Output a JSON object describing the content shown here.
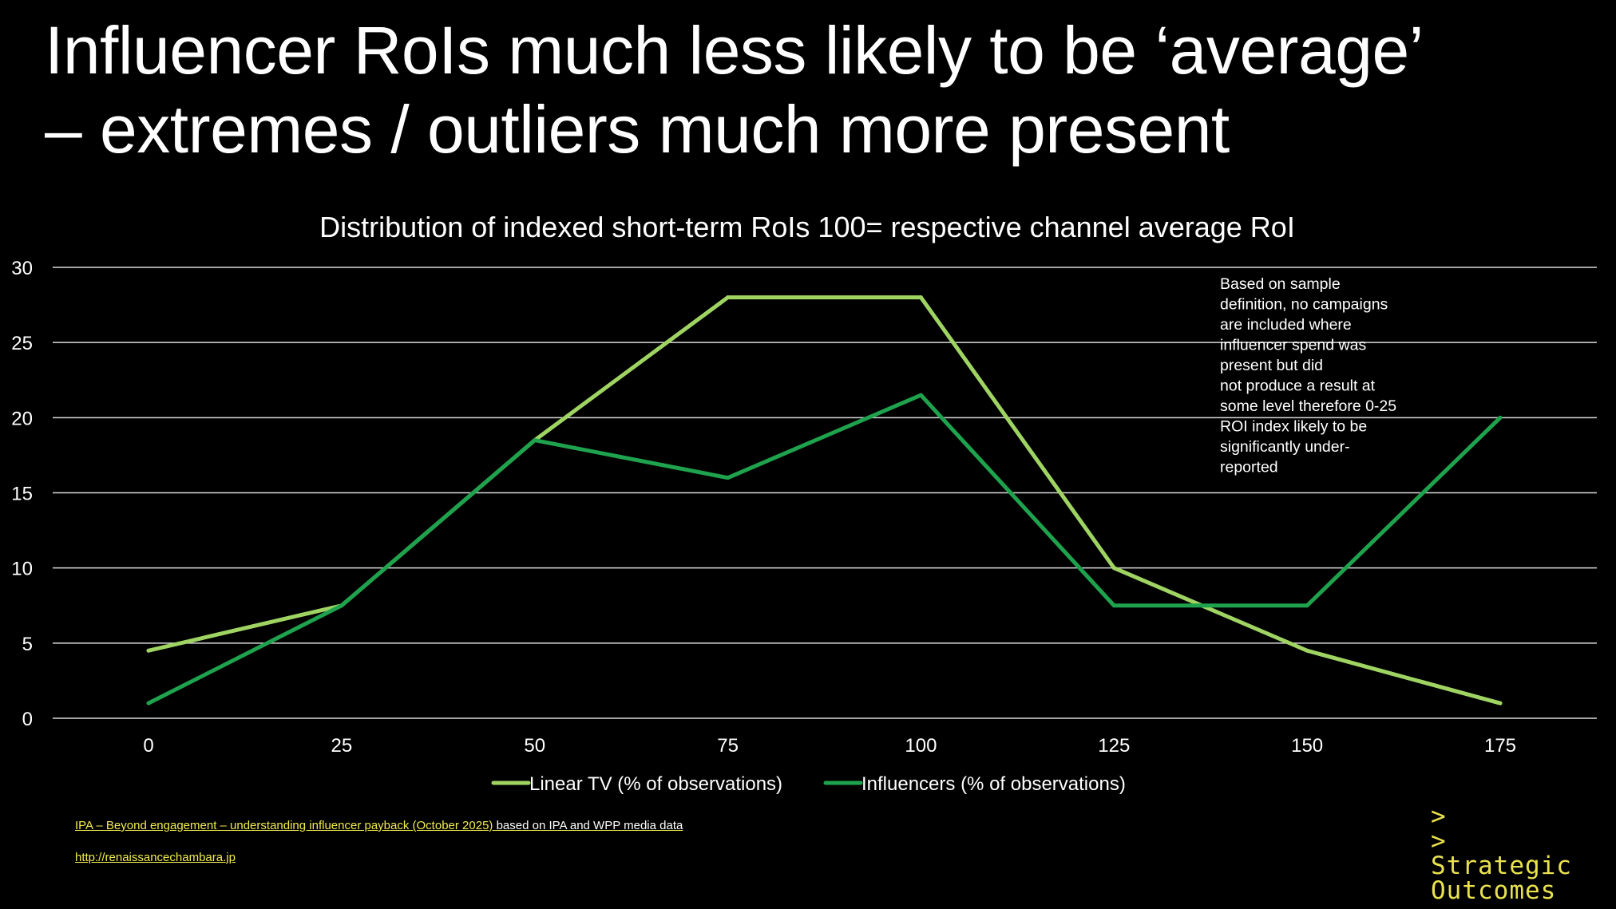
{
  "title": {
    "line1": "Influencer RoIs much less likely to be ‘average’",
    "line2": "– extremes / outliers much more present"
  },
  "chart_data": {
    "type": "line",
    "title": "Distribution of indexed  short-term RoIs  100= respective channel average RoI",
    "xlabel": "",
    "ylabel": "",
    "categories": [
      "0",
      "25",
      "50",
      "75",
      "100",
      "125",
      "150",
      "175"
    ],
    "x": [
      0,
      25,
      50,
      75,
      100,
      125,
      150,
      175
    ],
    "ylim": [
      0,
      30
    ],
    "yticks": [
      "0",
      "5",
      "10",
      "15",
      "20",
      "25",
      "30"
    ],
    "grid": true,
    "legend_position": "bottom",
    "series": [
      {
        "name": "Linear TV (% of observations)",
        "color": "#9fd463",
        "values": [
          4.5,
          7.5,
          18.5,
          28,
          28,
          10,
          4.5,
          1
        ]
      },
      {
        "name": "Influencers (% of observations)",
        "color": "#1fa24d",
        "values": [
          1,
          7.5,
          18.5,
          16,
          21.5,
          7.5,
          7.5,
          20
        ]
      }
    ],
    "annotation": [
      "Based on sample",
      "definition, no campaigns",
      "are included where",
      "influencer spend was",
      "present but did",
      "not produce a result at",
      "some level therefore 0-25",
      "ROI index likely to be",
      "significantly under-",
      "reported"
    ]
  },
  "footer": {
    "source_link": "IPA – Beyond engagement – understanding influencer payback (October 2025)",
    "source_note": " based on IPA and WPP media data",
    "url": "http://renaissancechambara.jp"
  },
  "brand": {
    "arrow1": ">",
    "arrow2": ">",
    "line1": "Strategic",
    "line2": "Outcomes"
  }
}
